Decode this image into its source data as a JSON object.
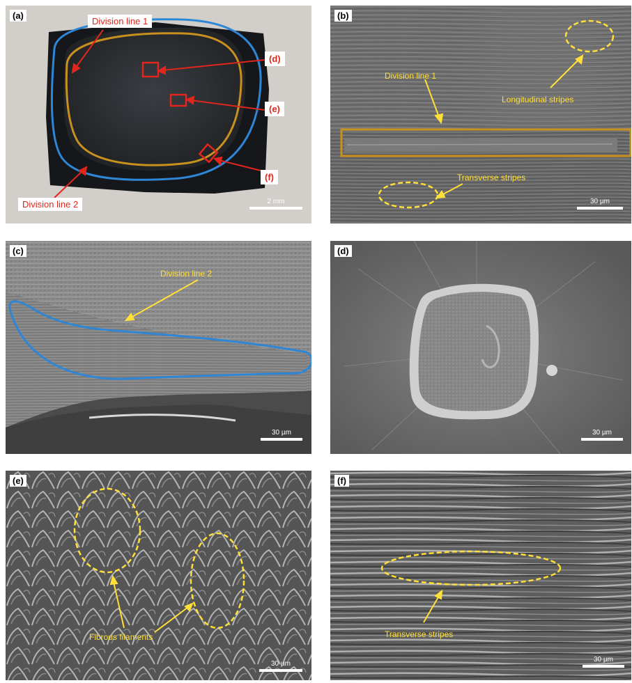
{
  "panels": {
    "a": {
      "tag": "(a)",
      "scale": "2 mm",
      "labels": {
        "division1": "Division line 1",
        "division2": "Division line 2",
        "d": "(d)",
        "e": "(e)",
        "f": "(f)"
      }
    },
    "b": {
      "tag": "(b)",
      "scale": "30 µm",
      "labels": {
        "division1": "Division line 1",
        "longitudinal": "Longitudinal stripes",
        "transverse": "Transverse stripes"
      }
    },
    "c": {
      "tag": "(c)",
      "scale": "30 µm",
      "labels": {
        "division2": "Division line 2"
      }
    },
    "d": {
      "tag": "(d)",
      "scale": "30 µm"
    },
    "e": {
      "tag": "(e)",
      "scale": "30 µm",
      "labels": {
        "fibrous": "Fibrous filaments"
      }
    },
    "f": {
      "tag": "(f)",
      "scale": "30 µm",
      "labels": {
        "transverse": "Transverse stripes"
      }
    }
  },
  "colors": {
    "division1": "#c8901e",
    "division2": "#2e86d6",
    "marker": "#e0261d",
    "annotation": "#ffe03a"
  }
}
